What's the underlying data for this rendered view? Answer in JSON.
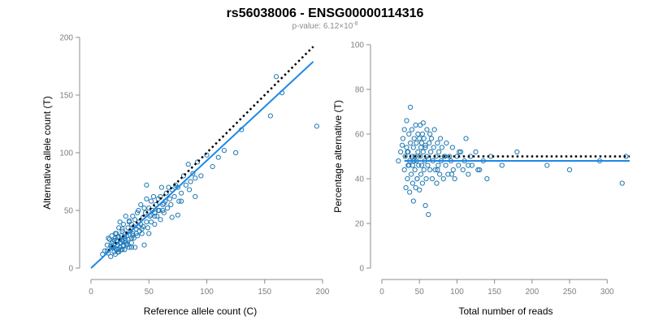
{
  "figure": {
    "title": "rs56038006 - ENSG00000114316",
    "subtitle_prefix": "p-value: 6.12×10",
    "subtitle_exponent": "-8"
  },
  "colors": {
    "points": "#1f78b4",
    "fit": "#1e88e5",
    "reference": "#000000"
  },
  "chart_data": [
    {
      "type": "scatter",
      "title": "",
      "xlabel": "Reference allele count (C)",
      "ylabel": "Alternative allele count (T)",
      "xlim": [
        0,
        200
      ],
      "ylim": [
        0,
        200
      ],
      "xticks": [
        0,
        50,
        100,
        150,
        200
      ],
      "yticks": [
        0,
        50,
        100,
        150,
        200
      ],
      "grid": false,
      "reference_line": {
        "style": "dotted",
        "from": [
          15,
          15
        ],
        "to": [
          192,
          192
        ]
      },
      "fit_line": {
        "from": [
          0,
          0
        ],
        "to": [
          192,
          179
        ]
      },
      "x": [
        10,
        12,
        14,
        15,
        16,
        17,
        18,
        18,
        19,
        20,
        20,
        21,
        21,
        22,
        22,
        23,
        23,
        24,
        24,
        25,
        25,
        25,
        26,
        26,
        27,
        27,
        28,
        28,
        29,
        29,
        30,
        30,
        30,
        31,
        31,
        32,
        32,
        33,
        33,
        34,
        35,
        35,
        36,
        36,
        37,
        37,
        38,
        38,
        39,
        40,
        40,
        41,
        41,
        42,
        43,
        43,
        44,
        45,
        45,
        46,
        47,
        48,
        48,
        49,
        50,
        50,
        51,
        52,
        52,
        53,
        54,
        55,
        55,
        56,
        57,
        58,
        59,
        60,
        60,
        61,
        62,
        63,
        64,
        65,
        66,
        67,
        68,
        69,
        70,
        72,
        73,
        75,
        76,
        78,
        80,
        82,
        84,
        85,
        86,
        88,
        90,
        92,
        95,
        100,
        105,
        110,
        115,
        125,
        130,
        155,
        160,
        165,
        195,
        20,
        22,
        24,
        26,
        28,
        14,
        17,
        19,
        23,
        27,
        31,
        35,
        39,
        44,
        52,
        58,
        63,
        70,
        78,
        15,
        18,
        21,
        24,
        27,
        30,
        33,
        36,
        41,
        46,
        55,
        62,
        48,
        75,
        90,
        35
      ],
      "y": [
        12,
        15,
        20,
        13,
        25,
        10,
        22,
        28,
        18,
        14,
        24,
        12,
        26,
        16,
        30,
        20,
        14,
        27,
        35,
        18,
        22,
        40,
        16,
        28,
        24,
        32,
        19,
        38,
        26,
        16,
        22,
        30,
        45,
        28,
        20,
        35,
        25,
        40,
        18,
        32,
        38,
        22,
        45,
        30,
        36,
        26,
        42,
        18,
        34,
        48,
        28,
        40,
        50,
        32,
        38,
        55,
        30,
        44,
        36,
        20,
        48,
        40,
        60,
        35,
        52,
        30,
        45,
        58,
        40,
        50,
        62,
        48,
        38,
        55,
        45,
        60,
        50,
        62,
        42,
        70,
        55,
        48,
        58,
        65,
        52,
        70,
        60,
        55,
        68,
        62,
        72,
        70,
        58,
        65,
        80,
        72,
        90,
        68,
        75,
        82,
        78,
        92,
        80,
        98,
        88,
        96,
        102,
        100,
        120,
        132,
        166,
        152,
        123,
        18,
        24,
        16,
        22,
        20,
        15,
        19,
        23,
        27,
        16,
        21,
        26,
        30,
        34,
        46,
        50,
        56,
        44,
        58,
        26,
        18,
        30,
        14,
        34,
        24,
        41,
        28,
        36,
        52,
        45,
        50,
        72,
        46,
        62,
        18
      ]
    },
    {
      "type": "scatter",
      "title": "",
      "xlabel": "Total number of reads",
      "ylabel": "Percentage alternative (T)",
      "xlim": [
        0,
        330
      ],
      "ylim": [
        0,
        100
      ],
      "xticks": [
        0,
        50,
        100,
        150,
        200,
        250,
        300
      ],
      "yticks": [
        0,
        20,
        40,
        60,
        80,
        100
      ],
      "grid": false,
      "reference_line": {
        "style": "dotted",
        "y": 50
      },
      "fit_line": {
        "y": 48
      },
      "x": [
        22,
        25,
        27,
        28,
        30,
        30,
        31,
        32,
        33,
        33,
        34,
        35,
        35,
        36,
        37,
        37,
        38,
        38,
        39,
        40,
        40,
        41,
        41,
        42,
        42,
        43,
        44,
        44,
        45,
        45,
        46,
        46,
        47,
        48,
        48,
        49,
        50,
        50,
        51,
        51,
        52,
        52,
        53,
        54,
        54,
        55,
        56,
        56,
        57,
        58,
        58,
        59,
        60,
        60,
        61,
        62,
        63,
        64,
        65,
        66,
        67,
        68,
        69,
        70,
        71,
        72,
        73,
        74,
        75,
        76,
        77,
        78,
        79,
        80,
        82,
        84,
        85,
        86,
        88,
        90,
        92,
        94,
        95,
        97,
        100,
        102,
        105,
        108,
        110,
        112,
        115,
        118,
        120,
        125,
        130,
        135,
        140,
        145,
        160,
        180,
        220,
        250,
        290,
        320,
        325,
        36,
        34,
        43,
        47,
        53,
        64,
        74,
        83,
        93,
        103,
        115,
        128,
        55,
        58,
        62
      ],
      "y": [
        48,
        52,
        55,
        58,
        44,
        62,
        50,
        36,
        54,
        66,
        40,
        46,
        52,
        60,
        34,
        48,
        56,
        72,
        42,
        50,
        62,
        38,
        46,
        54,
        30,
        58,
        44,
        50,
        36,
        64,
        48,
        56,
        40,
        52,
        60,
        46,
        58,
        35,
        50,
        64,
        42,
        54,
        46,
        38,
        60,
        52,
        44,
        58,
        48,
        28,
        54,
        40,
        62,
        50,
        46,
        24,
        56,
        44,
        52,
        58,
        40,
        48,
        54,
        62,
        44,
        50,
        38,
        56,
        46,
        52,
        42,
        58,
        48,
        54,
        40,
        50,
        46,
        56,
        42,
        50,
        48,
        54,
        44,
        40,
        50,
        46,
        52,
        44,
        48,
        58,
        42,
        50,
        46,
        52,
        44,
        48,
        40,
        50,
        46,
        52,
        46,
        44,
        48,
        38,
        50,
        46,
        52,
        48,
        40,
        56,
        60,
        44,
        50,
        42,
        52,
        46,
        44,
        65,
        55,
        49
      ]
    }
  ]
}
